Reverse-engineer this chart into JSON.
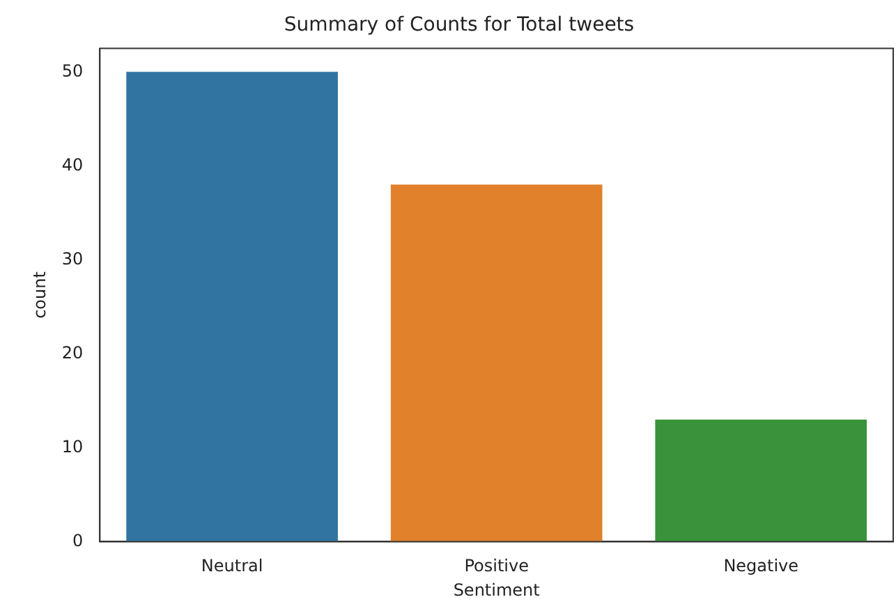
{
  "chart_data": {
    "type": "bar",
    "title": "Summary of Counts for Total tweets",
    "xlabel": "Sentiment",
    "ylabel": "count",
    "categories": [
      "Neutral",
      "Positive",
      "Negative"
    ],
    "values": [
      50,
      38,
      13
    ],
    "colors": [
      "#3274a1",
      "#e1812c",
      "#3a923a"
    ],
    "ylim": [
      0,
      52.5
    ],
    "yticks": [
      0,
      10,
      20,
      30,
      40,
      50
    ],
    "grid": false,
    "legend": false
  }
}
